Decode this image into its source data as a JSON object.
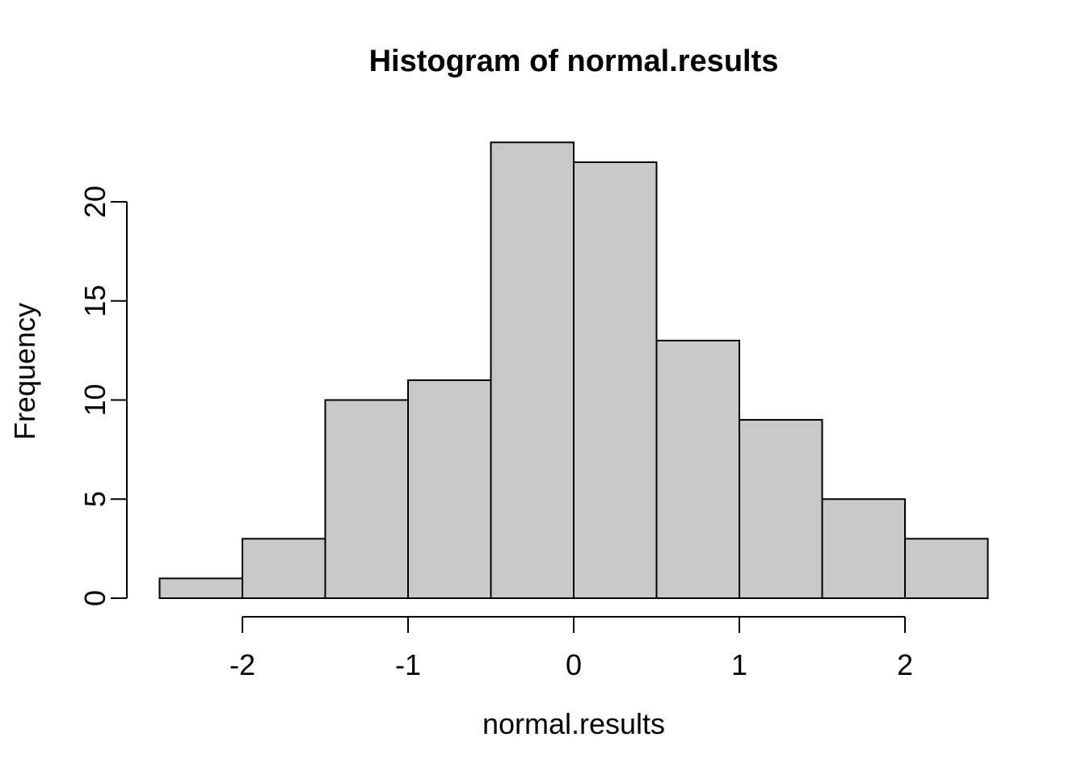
{
  "chart_data": {
    "type": "bar",
    "subtype": "histogram",
    "title": "Histogram of normal.results",
    "xlabel": "normal.results",
    "ylabel": "Frequency",
    "breaks": [
      -2.5,
      -2.0,
      -1.5,
      -1.0,
      -0.5,
      0.0,
      0.5,
      1.0,
      1.5,
      2.0,
      2.5
    ],
    "counts": [
      1,
      3,
      10,
      11,
      23,
      22,
      13,
      9,
      5,
      3
    ],
    "bin_width": 0.5,
    "x_ticks": [
      -2,
      -1,
      0,
      1,
      2
    ],
    "x_tick_labels": [
      "-2",
      "-1",
      "0",
      "1",
      "2"
    ],
    "y_ticks": [
      0,
      5,
      10,
      15,
      20
    ],
    "y_tick_labels": [
      "0",
      "5",
      "10",
      "15",
      "20"
    ],
    "xlim": [
      -2.5,
      2.5
    ],
    "ylim": [
      0,
      23
    ],
    "grid": false,
    "legend": "none",
    "colors": {
      "bar_fill": "#C8C8C8",
      "bar_stroke": "#000000",
      "axis": "#000000",
      "text": "#000000",
      "background": "#FFFFFF"
    }
  }
}
